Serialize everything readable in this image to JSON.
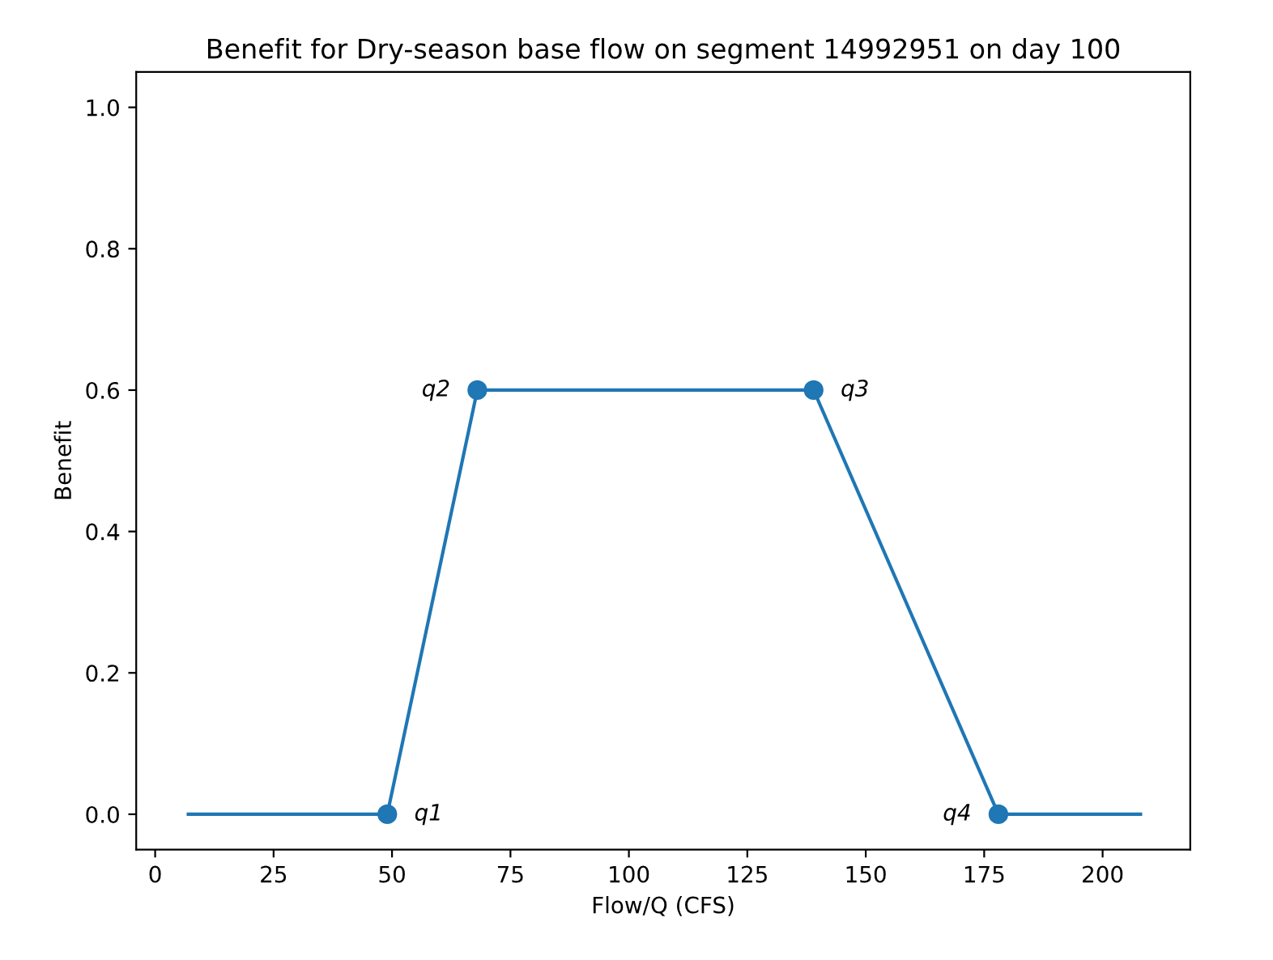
{
  "chart_data": {
    "type": "line",
    "title": "Benefit for Dry-season base flow on segment 14992951 on day 100",
    "xlabel": "Flow/Q (CFS)",
    "ylabel": "Benefit",
    "series": [
      {
        "color": "#1f77b4",
        "x": [
          7,
          49,
          68,
          139,
          178,
          208
        ],
        "values": [
          0,
          0,
          0.6,
          0.6,
          0,
          0
        ],
        "marker": "none"
      },
      {
        "type": "scatter",
        "color": "#1f77b4",
        "x": [
          49,
          68,
          139,
          178
        ],
        "values": [
          0,
          0.6,
          0.6,
          0
        ],
        "marker": "circle"
      }
    ],
    "annotations": [
      {
        "text": "q1",
        "x": 49,
        "y": 0
      },
      {
        "text": "q2",
        "x": 68,
        "y": 0.6
      },
      {
        "text": "q3",
        "x": 139,
        "y": 0.6
      },
      {
        "text": "q4",
        "x": 178,
        "y": 0
      }
    ],
    "xlim": [
      -4,
      218.5
    ],
    "ylim": [
      -0.05,
      1.05
    ],
    "xticks": [
      0,
      25,
      50,
      75,
      100,
      125,
      150,
      175,
      200
    ],
    "yticks": [
      {
        "value": 0,
        "label": "0.0"
      },
      {
        "value": 0.2,
        "label": "0.2"
      },
      {
        "value": 0.4,
        "label": "0.4"
      },
      {
        "value": 0.6,
        "label": "0.6"
      },
      {
        "value": 0.8,
        "label": "0.8"
      },
      {
        "value": 1.0,
        "label": "1.0"
      }
    ],
    "grid": false,
    "legend": false
  }
}
